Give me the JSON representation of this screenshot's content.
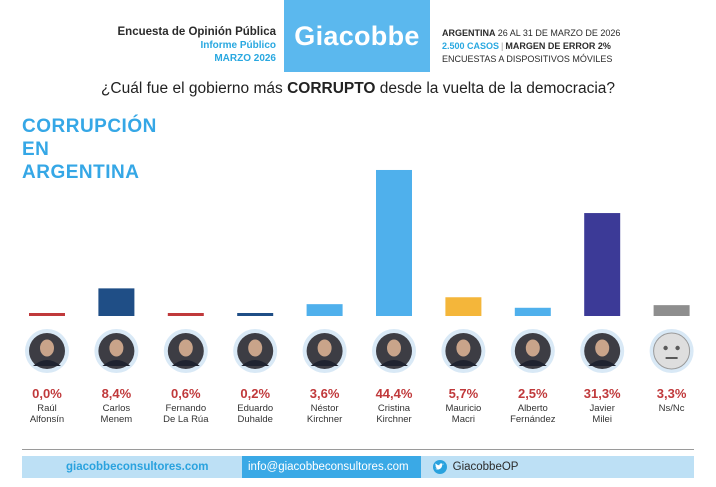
{
  "header": {
    "left_line1": "Encuesta de Opinión Pública",
    "left_line2": "Informe Público",
    "left_line3": "MARZO 2026",
    "logo": "Giacobbe",
    "right_country": "ARGENTINA",
    "right_dates": "26 AL 31 DE MARZO DE 2026",
    "right_cases": "2.500 CASOS",
    "right_margin": "MARGEN DE ERROR 2%",
    "right_method": "ENCUESTAS A DISPOSITIVOS MÓVILES"
  },
  "question": {
    "pre": "¿Cuál fue el gobierno más ",
    "bold": "CORRUPTO",
    "post": " desde la vuelta de la democracia?"
  },
  "side_title": [
    "CORRUPCIÓN",
    "EN",
    "ARGENTINA"
  ],
  "chart_data": {
    "type": "bar",
    "unit": "%",
    "categories": [
      [
        "Raúl",
        "Alfonsín"
      ],
      [
        "Carlos",
        "Menem"
      ],
      [
        "Fernando",
        "De La Rúa"
      ],
      [
        "Eduardo",
        "Duhalde"
      ],
      [
        "Néstor",
        "Kirchner"
      ],
      [
        "Cristina",
        "Kirchner"
      ],
      [
        "Mauricio",
        "Macri"
      ],
      [
        "Alberto",
        "Fernández"
      ],
      [
        "Javier",
        "Milei"
      ],
      [
        "Ns/Nc"
      ]
    ],
    "values": [
      0.0,
      8.4,
      0.6,
      0.2,
      3.6,
      44.4,
      5.7,
      2.5,
      31.3,
      3.3
    ],
    "value_labels": [
      "0,0%",
      "8,4%",
      "0,6%",
      "0,2%",
      "3,6%",
      "44,4%",
      "5,7%",
      "2,5%",
      "31,3%",
      "3,3%"
    ],
    "colors": [
      "#c0393b",
      "#1f4e86",
      "#c0393b",
      "#1f4e86",
      "#4fb0ec",
      "#4fb0ec",
      "#f4b63a",
      "#4fb0ec",
      "#3c3a97",
      "#8e8e8e"
    ],
    "icons": [
      "portrait-icon",
      "portrait-icon",
      "portrait-icon",
      "portrait-icon",
      "portrait-icon",
      "portrait-icon",
      "portrait-icon",
      "portrait-icon",
      "portrait-icon",
      "neutral-face-icon"
    ],
    "label_color": "#c0393b",
    "ylim": [
      0,
      45
    ]
  },
  "footer": {
    "website": "giacobbeconsultores.com",
    "email": "info@giacobbeconsultores.com",
    "twitter": "GiacobbeOP"
  }
}
